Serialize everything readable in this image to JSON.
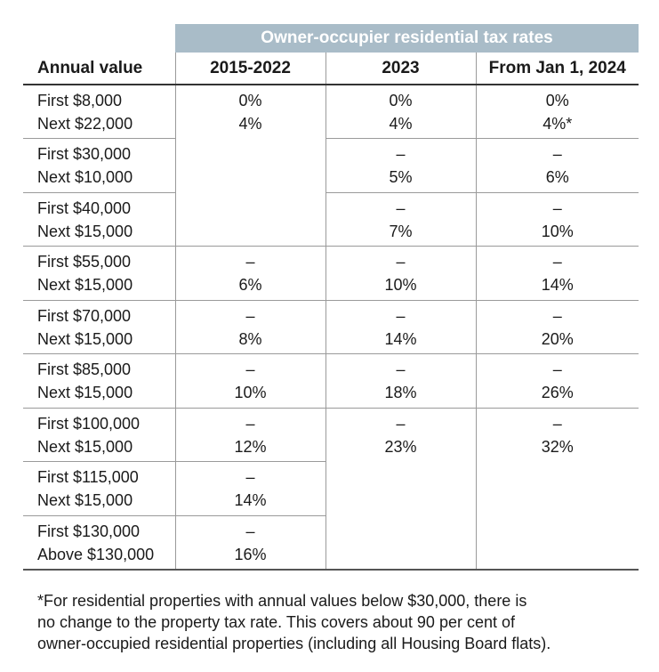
{
  "table": {
    "group_header": "Owner-occupier residential tax rates",
    "columns": [
      "Annual value",
      "2015-2022",
      "2023",
      "From Jan 1, 2024"
    ],
    "rows": [
      {
        "label": [
          "First $8,000",
          "Next $22,000"
        ],
        "c2015": [
          "0%",
          "4%"
        ],
        "c2023": [
          "0%",
          "4%"
        ],
        "c2024": [
          "0%",
          "4%*"
        ]
      },
      {
        "label": [
          "First $30,000",
          "Next $10,000"
        ],
        "c2015": [
          "",
          ""
        ],
        "c2023": [
          "–",
          "5%"
        ],
        "c2024": [
          "–",
          "6%"
        ]
      },
      {
        "label": [
          "First $40,000",
          "Next $15,000"
        ],
        "c2015": [
          "",
          ""
        ],
        "c2023": [
          "–",
          "7%"
        ],
        "c2024": [
          "–",
          "10%"
        ]
      },
      {
        "label": [
          "First $55,000",
          "Next $15,000"
        ],
        "c2015": [
          "–",
          "6%"
        ],
        "c2023": [
          "–",
          "10%"
        ],
        "c2024": [
          "–",
          "14%"
        ]
      },
      {
        "label": [
          "First $70,000",
          "Next $15,000"
        ],
        "c2015": [
          "–",
          "8%"
        ],
        "c2023": [
          "–",
          "14%"
        ],
        "c2024": [
          "–",
          "20%"
        ]
      },
      {
        "label": [
          "First $85,000",
          "Next $15,000"
        ],
        "c2015": [
          "–",
          "10%"
        ],
        "c2023": [
          "–",
          "18%"
        ],
        "c2024": [
          "–",
          "26%"
        ]
      },
      {
        "label": [
          "First $100,000",
          "Next $15,000"
        ],
        "c2015": [
          "–",
          "12%"
        ],
        "c2023": [
          "–",
          "23%"
        ],
        "c2024": [
          "–",
          "32%"
        ]
      },
      {
        "label": [
          "First $115,000",
          "Next $15,000"
        ],
        "c2015": [
          "–",
          "14%"
        ],
        "c2023": [
          "",
          ""
        ],
        "c2024": [
          "",
          ""
        ]
      },
      {
        "label": [
          "First $130,000",
          "Above $130,000"
        ],
        "c2015": [
          "–",
          "16%"
        ],
        "c2023": [
          "",
          ""
        ],
        "c2024": [
          "",
          ""
        ]
      }
    ]
  },
  "footnote": [
    "*For residential properties with annual values below $30,000, there is",
    "no change to the property tax rate. This covers about 90 per cent of",
    "owner-occupied residential properties (including all Housing Board flats)."
  ]
}
